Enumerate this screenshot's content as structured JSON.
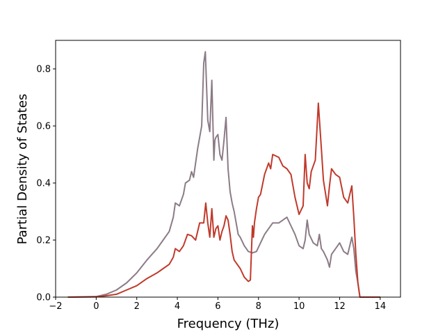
{
  "chart_data": {
    "type": "line",
    "title": "",
    "xlabel": "Frequency (THz)",
    "ylabel": "Partial Density of States",
    "xlim": [
      -2.0,
      15.0
    ],
    "ylim": [
      0.0,
      0.9
    ],
    "x_ticks": [
      -2,
      0,
      2,
      4,
      6,
      8,
      10,
      12,
      14
    ],
    "x_tick_labels": [
      "−2",
      "0",
      "2",
      "4",
      "6",
      "8",
      "10",
      "12",
      "14"
    ],
    "y_ticks": [
      0.0,
      0.2,
      0.4,
      0.6,
      0.8
    ],
    "y_tick_labels": [
      "0.0",
      "0.2",
      "0.4",
      "0.6",
      "0.8"
    ],
    "grid": false,
    "legend": "none",
    "series": [
      {
        "color": "#8b7b86",
        "x": [
          -1.4,
          0.0,
          0.5,
          1.0,
          1.5,
          2.0,
          2.5,
          3.0,
          3.3,
          3.6,
          3.8,
          3.9,
          4.1,
          4.3,
          4.4,
          4.6,
          4.7,
          4.8,
          5.0,
          5.2,
          5.3,
          5.38,
          5.5,
          5.6,
          5.7,
          5.8,
          5.85,
          5.9,
          6.0,
          6.1,
          6.2,
          6.3,
          6.4,
          6.5,
          6.6,
          6.7,
          6.8,
          7.0,
          7.1,
          7.3,
          7.5,
          7.7,
          7.9,
          8.1,
          8.3,
          8.5,
          8.7,
          9.0,
          9.2,
          9.4,
          9.6,
          9.8,
          10.0,
          10.2,
          10.3,
          10.4,
          10.5,
          10.7,
          10.9,
          11.0,
          11.1,
          11.2,
          11.4,
          11.5,
          11.6,
          11.8,
          12.0,
          12.2,
          12.4,
          12.6,
          12.7,
          12.8,
          12.9,
          13.0,
          14.0
        ],
        "y": [
          0.0,
          0.002,
          0.01,
          0.025,
          0.05,
          0.085,
          0.13,
          0.17,
          0.2,
          0.23,
          0.28,
          0.33,
          0.32,
          0.36,
          0.4,
          0.41,
          0.44,
          0.42,
          0.52,
          0.6,
          0.82,
          0.86,
          0.62,
          0.58,
          0.76,
          0.48,
          0.55,
          0.56,
          0.57,
          0.5,
          0.48,
          0.55,
          0.63,
          0.45,
          0.37,
          0.33,
          0.3,
          0.22,
          0.21,
          0.18,
          0.16,
          0.155,
          0.16,
          0.19,
          0.22,
          0.24,
          0.26,
          0.26,
          0.27,
          0.28,
          0.25,
          0.22,
          0.18,
          0.17,
          0.2,
          0.27,
          0.22,
          0.19,
          0.18,
          0.22,
          0.17,
          0.16,
          0.13,
          0.105,
          0.15,
          0.17,
          0.19,
          0.16,
          0.15,
          0.21,
          0.17,
          0.09,
          0.05,
          0.0,
          0.0
        ]
      },
      {
        "color": "#c0392b",
        "x": [
          -1.4,
          0.0,
          0.5,
          1.0,
          1.5,
          2.0,
          2.5,
          3.0,
          3.3,
          3.6,
          3.8,
          3.9,
          4.1,
          4.3,
          4.5,
          4.7,
          4.9,
          5.1,
          5.3,
          5.4,
          5.5,
          5.6,
          5.7,
          5.8,
          5.9,
          6.0,
          6.1,
          6.2,
          6.3,
          6.4,
          6.5,
          6.6,
          6.7,
          6.8,
          7.0,
          7.1,
          7.3,
          7.5,
          7.6,
          7.7,
          7.75,
          7.8,
          7.9,
          8.0,
          8.1,
          8.3,
          8.5,
          8.6,
          8.7,
          9.0,
          9.2,
          9.4,
          9.6,
          9.8,
          10.0,
          10.2,
          10.3,
          10.4,
          10.5,
          10.6,
          10.8,
          10.95,
          11.1,
          11.2,
          11.4,
          11.5,
          11.6,
          11.8,
          12.0,
          12.2,
          12.4,
          12.6,
          12.7,
          12.8,
          12.9,
          13.0,
          14.0
        ],
        "y": [
          0.0,
          0.001,
          0.005,
          0.01,
          0.025,
          0.04,
          0.065,
          0.085,
          0.1,
          0.115,
          0.14,
          0.17,
          0.16,
          0.18,
          0.22,
          0.215,
          0.2,
          0.26,
          0.26,
          0.33,
          0.26,
          0.21,
          0.31,
          0.21,
          0.24,
          0.25,
          0.2,
          0.23,
          0.25,
          0.285,
          0.27,
          0.22,
          0.16,
          0.13,
          0.11,
          0.1,
          0.07,
          0.055,
          0.06,
          0.25,
          0.21,
          0.26,
          0.31,
          0.35,
          0.36,
          0.43,
          0.47,
          0.45,
          0.5,
          0.49,
          0.46,
          0.45,
          0.43,
          0.35,
          0.29,
          0.32,
          0.5,
          0.4,
          0.38,
          0.44,
          0.48,
          0.68,
          0.52,
          0.41,
          0.32,
          0.39,
          0.45,
          0.43,
          0.42,
          0.35,
          0.33,
          0.39,
          0.28,
          0.15,
          0.05,
          0.0,
          0.0
        ]
      }
    ]
  }
}
